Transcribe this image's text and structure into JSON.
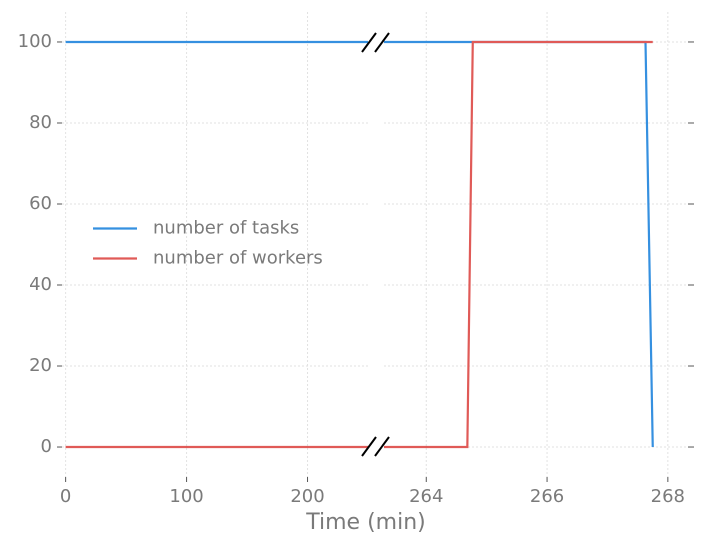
{
  "chart_data": {
    "type": "line",
    "xlabel": "Time (min)",
    "panels": [
      {
        "xlim": [
          -3,
          250
        ],
        "xticks": [
          0,
          100,
          200
        ]
      },
      {
        "xlim": [
          263.3,
          268.4
        ],
        "xticks": [
          264,
          266,
          268
        ]
      }
    ],
    "ylim": [
      -7.4,
      107.4
    ],
    "yticks": [
      0,
      20,
      40,
      60,
      80,
      100
    ],
    "grid": true,
    "legend": "center left",
    "series": [
      {
        "name": "number of tasks",
        "color": "#3590e0",
        "x": [
          0,
          267.63,
          267.75
        ],
        "values": [
          100,
          100,
          0
        ]
      },
      {
        "name": "number of workers",
        "color": "#e05a57",
        "x": [
          0,
          264.68,
          264.77,
          267.75
        ],
        "values": [
          0,
          0,
          100,
          100
        ]
      }
    ]
  }
}
